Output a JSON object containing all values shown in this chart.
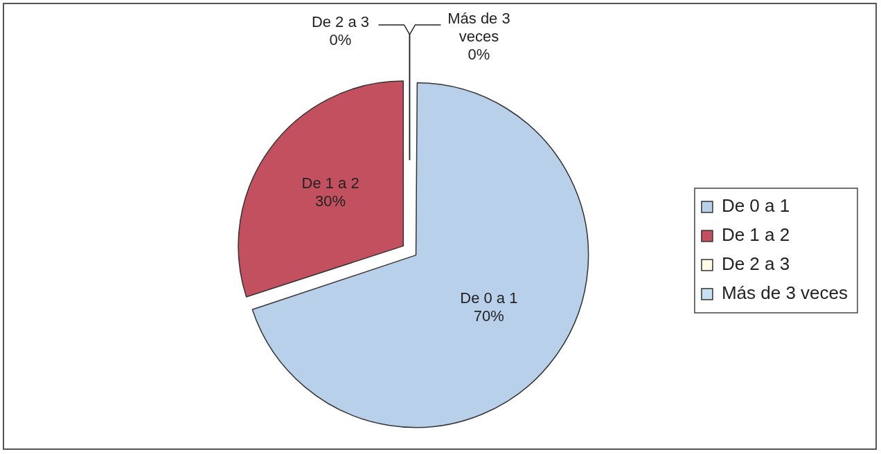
{
  "chart_data": {
    "type": "pie",
    "categories": [
      "De 0 a 1",
      "De 1 a 2",
      "De 2 a 3",
      "Más de 3 veces"
    ],
    "values": [
      70,
      30,
      0,
      0
    ],
    "colors": [
      "#b8d0ea",
      "#c3505f",
      "#fffbe6",
      "#c6e2f2"
    ],
    "value_labels": [
      "70%",
      "30%",
      "0%",
      "0%"
    ],
    "legend": "right"
  }
}
